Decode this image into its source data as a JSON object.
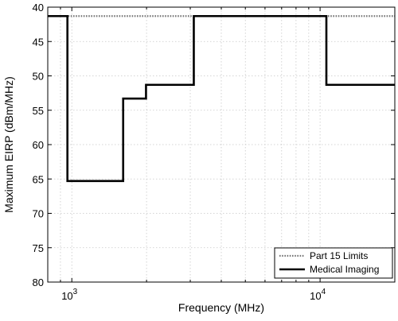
{
  "chart_data": {
    "type": "line",
    "xlabel": "Frequency  (MHz)",
    "ylabel": "Maximum EIRP (dBm/MHz)",
    "x_scale": "log",
    "xlim": [
      800,
      20000
    ],
    "ylim": [
      80,
      40
    ],
    "y_inverted": true,
    "y_ticks": [
      40,
      45,
      50,
      55,
      60,
      65,
      70,
      75,
      80
    ],
    "x_ticks": [
      {
        "value": 1000,
        "base": "10",
        "exp": "3"
      },
      {
        "value": 10000,
        "base": "10",
        "exp": "4"
      }
    ],
    "x_minor_ticks": [
      800,
      900,
      2000,
      3000,
      4000,
      5000,
      6000,
      7000,
      8000,
      9000,
      20000
    ],
    "grid": true,
    "legend_position": "bottom-right",
    "series": [
      {
        "name": "Part 15 Limits",
        "style": "dotted",
        "color": "#777777",
        "x": [
          800,
          20000
        ],
        "y": [
          41.3,
          41.3
        ]
      },
      {
        "name": "Medical Imaging",
        "style": "solid",
        "color": "#000000",
        "x": [
          800,
          960,
          960,
          1610,
          1610,
          1990,
          1990,
          3100,
          3100,
          10600,
          10600,
          20000
        ],
        "y": [
          41.3,
          41.3,
          65.3,
          65.3,
          53.3,
          53.3,
          51.3,
          51.3,
          41.3,
          41.3,
          51.3,
          51.3
        ]
      }
    ]
  }
}
